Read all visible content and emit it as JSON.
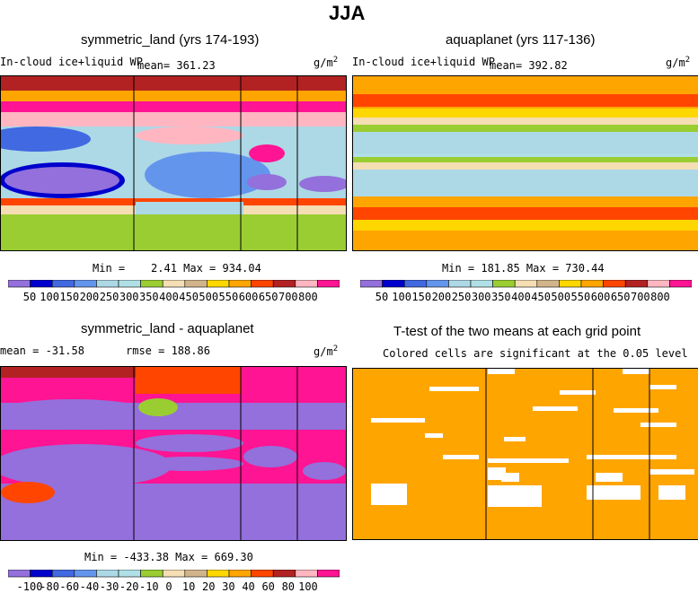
{
  "main_title": "JJA",
  "panels": {
    "p1": {
      "title": "symmetric_land (yrs 174-193)",
      "variable": "In-cloud ice+liquid WP",
      "mean": "mean= 361.23",
      "units_base": "g/m",
      "units_exp": "2",
      "minmax": "Min =    2.41 Max = 934.04"
    },
    "p2": {
      "title": "aquaplanet (yrs 117-136)",
      "variable": "In-cloud ice+liquid WP",
      "mean": "mean= 392.82",
      "units_base": "g/m",
      "units_exp": "2",
      "minmax": "Min = 181.85 Max = 730.44"
    },
    "p3": {
      "title": "symmetric_land - aquaplanet",
      "mean": "mean = -31.58",
      "rmse": "rmse = 188.86",
      "units_base": "g/m",
      "units_exp": "2",
      "minmax": "Min = -433.38 Max = 669.30"
    },
    "p4": {
      "title": "T-test of the two means at each grid point",
      "subtitle": "Colored cells are significant at the 0.05 level"
    }
  },
  "colorbars": {
    "absolute": {
      "labels": [
        "50",
        "100",
        "150",
        "200",
        "250",
        "300",
        "350",
        "400",
        "450",
        "500",
        "550",
        "600",
        "650",
        "700",
        "800"
      ],
      "colors": [
        "#9370db",
        "#0000cd",
        "#4169e1",
        "#6495ed",
        "#add8e6",
        "#b0e0e6",
        "#9acd32",
        "#f5deb3",
        "#d2b48c",
        "#ffd700",
        "#ffa500",
        "#ff4500",
        "#b22222",
        "#ffb6c1",
        "#ff1493"
      ]
    },
    "difference": {
      "labels": [
        "-100",
        "-80",
        "-60",
        "-40",
        "-30",
        "-20",
        "-10",
        "0",
        "10",
        "20",
        "30",
        "40",
        "60",
        "80",
        "100"
      ],
      "colors": [
        "#9370db",
        "#0000cd",
        "#4169e1",
        "#6495ed",
        "#add8e6",
        "#b0e0e6",
        "#9acd32",
        "#f5deb3",
        "#d2b48c",
        "#ffd700",
        "#ffa500",
        "#ff4500",
        "#b22222",
        "#ffb6c1",
        "#ff1493"
      ]
    }
  },
  "chart_data": [
    {
      "type": "heatmap",
      "title": "symmetric_land (yrs 174-193)",
      "variable": "In-cloud ice+liquid WP",
      "units": "g/m^2",
      "mean": 361.23,
      "min": 2.41,
      "max": 934.04,
      "contour_levels": [
        50,
        100,
        150,
        200,
        250,
        300,
        350,
        400,
        450,
        500,
        550,
        600,
        650,
        700,
        800
      ]
    },
    {
      "type": "heatmap",
      "title": "aquaplanet (yrs 117-136)",
      "variable": "In-cloud ice+liquid WP",
      "units": "g/m^2",
      "mean": 392.82,
      "min": 181.85,
      "max": 730.44,
      "contour_levels": [
        50,
        100,
        150,
        200,
        250,
        300,
        350,
        400,
        450,
        500,
        550,
        600,
        650,
        700,
        800
      ]
    },
    {
      "type": "heatmap",
      "title": "symmetric_land - aquaplanet",
      "units": "g/m^2",
      "mean": -31.58,
      "rmse": 188.86,
      "min": -433.38,
      "max": 669.3,
      "contour_levels": [
        -100,
        -80,
        -60,
        -40,
        -30,
        -20,
        -10,
        0,
        10,
        20,
        30,
        40,
        60,
        80,
        100
      ]
    },
    {
      "type": "heatmap",
      "title": "T-test of the two means at each grid point",
      "subtitle": "Colored cells are significant at the 0.05 level",
      "significance_level": 0.05
    }
  ]
}
